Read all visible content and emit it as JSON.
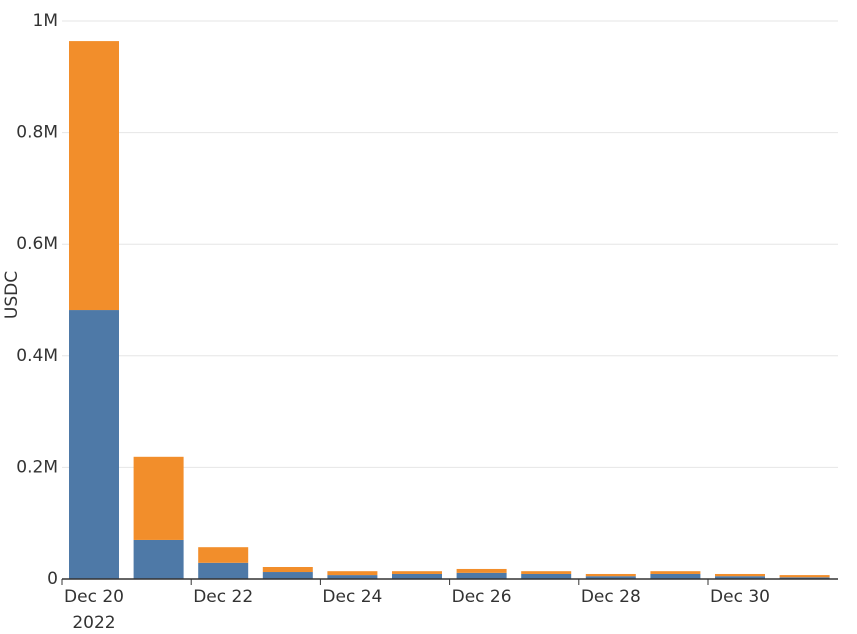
{
  "chart_data": {
    "type": "stacked-bar",
    "y_label": "USDC",
    "categories": [
      "Dec 20",
      null,
      "Dec 22",
      null,
      "Dec 24",
      null,
      "Dec 26",
      null,
      "Dec 28",
      null,
      "Dec 30",
      null
    ],
    "x_sublabel": "2022",
    "series": [
      {
        "color": "#4e79a7",
        "values": [
          482000,
          70000,
          29000,
          12500,
          7000,
          9000,
          11000,
          9000,
          5000,
          9000,
          5000,
          3000
        ]
      },
      {
        "color": "#f28e2b",
        "values": [
          482000,
          149000,
          28000,
          9000,
          7000,
          5000,
          7000,
          5000,
          4000,
          5000,
          4000,
          4000
        ]
      }
    ],
    "ylim": [
      0,
      1000000
    ],
    "yticks": [
      0,
      {
        "value": 200000,
        "label": "0.2M"
      },
      {
        "value": 400000,
        "label": "0.4M"
      },
      {
        "value": 600000,
        "label": "0.6M"
      },
      {
        "value": 800000,
        "label": "0.8M"
      },
      {
        "value": 1000000,
        "label": "1M"
      }
    ],
    "grid": true
  }
}
